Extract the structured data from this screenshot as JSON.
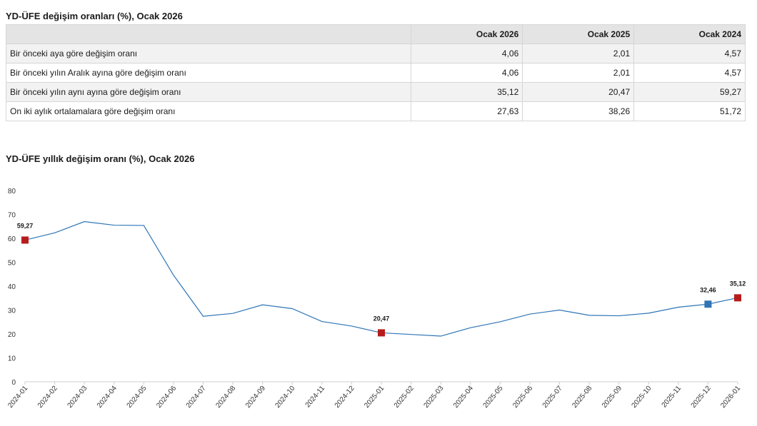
{
  "table": {
    "title": "YD-ÜFE değişim oranları (%), Ocak 2026",
    "headers": [
      "",
      "Ocak 2026",
      "Ocak 2025",
      "Ocak 2024"
    ],
    "rows": [
      {
        "label": "Bir önceki aya göre değişim oranı",
        "values": [
          "4,06",
          "2,01",
          "4,57"
        ]
      },
      {
        "label": "Bir önceki yılın Aralık ayına göre değişim oranı",
        "values": [
          "4,06",
          "2,01",
          "4,57"
        ]
      },
      {
        "label": "Bir önceki yılın aynı ayına göre değişim oranı",
        "values": [
          "35,12",
          "20,47",
          "59,27"
        ]
      },
      {
        "label": "On iki aylık ortalamalara göre değişim oranı",
        "values": [
          "27,63",
          "38,26",
          "51,72"
        ]
      }
    ]
  },
  "chart_data": {
    "type": "line",
    "title": "YD-ÜFE yıllık değişim oranı (%), Ocak 2026",
    "xlabel": "",
    "ylabel": "",
    "ylim": [
      0,
      80
    ],
    "yticks": [
      0,
      10,
      20,
      30,
      40,
      50,
      60,
      70,
      80
    ],
    "grid": false,
    "x": [
      "2024-01",
      "2024-02",
      "2024-03",
      "2024-04",
      "2024-05",
      "2024-06",
      "2024-07",
      "2024-08",
      "2024-09",
      "2024-10",
      "2024-11",
      "2024-12",
      "2025-01",
      "2025-02",
      "2025-03",
      "2025-04",
      "2025-05",
      "2025-06",
      "2025-07",
      "2025-08",
      "2025-09",
      "2025-10",
      "2025-11",
      "2025-12",
      "2026-01"
    ],
    "series": [
      {
        "values": [
          59.27,
          62.3,
          67.0,
          65.5,
          65.4,
          44.6,
          27.4,
          28.6,
          32.2,
          30.6,
          25.2,
          23.3,
          20.47,
          19.8,
          19.1,
          22.6,
          25.1,
          28.3,
          30.0,
          27.8,
          27.6,
          28.7,
          31.2,
          32.46,
          35.12
        ]
      }
    ],
    "highlights": [
      {
        "x": "2024-01",
        "value": 59.27,
        "label": "59,27",
        "color": "#b71c1c"
      },
      {
        "x": "2025-01",
        "value": 20.47,
        "label": "20,47",
        "color": "#b71c1c"
      },
      {
        "x": "2025-12",
        "value": 32.46,
        "label": "32,46",
        "color": "#2e75b6"
      },
      {
        "x": "2026-01",
        "value": 35.12,
        "label": "35,12",
        "color": "#b71c1c"
      }
    ],
    "line_color": "#2e75b6"
  }
}
